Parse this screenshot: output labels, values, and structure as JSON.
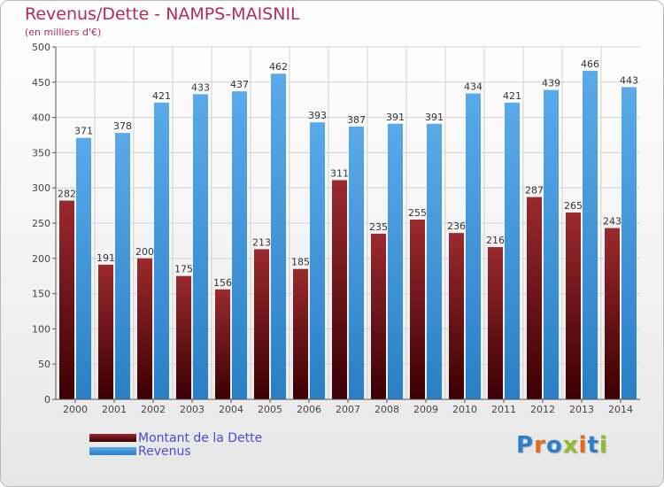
{
  "header": {
    "title": "Revenus/Dette - NAMPS-MAISNIL",
    "subtitle": "(en milliers d'€)"
  },
  "legend": [
    {
      "label": "Montant de la Dette",
      "color": "#7a1518"
    },
    {
      "label": "Revenus",
      "color": "#3d95dc"
    }
  ],
  "logo": {
    "text": "Proxiti",
    "colors": [
      "#2f7fc8",
      "#e8681a",
      "#2f7fc8",
      "#8ebd2a",
      "#e8681a",
      "#2f7fc8",
      "#8ebd2a"
    ]
  },
  "colors": {
    "title": "#b52a5c",
    "debt": "#7a1518",
    "revenue": "#3d95dc",
    "grid": "#d2d2d2"
  },
  "chart_data": {
    "type": "bar",
    "categories": [
      "2000",
      "2001",
      "2002",
      "2003",
      "2004",
      "2005",
      "2006",
      "2007",
      "2008",
      "2009",
      "2010",
      "2011",
      "2012",
      "2013",
      "2014"
    ],
    "series": [
      {
        "name": "Montant de la Dette",
        "values": [
          282,
          191,
          200,
          175,
          156,
          213,
          185,
          311,
          235,
          255,
          236,
          216,
          287,
          265,
          243
        ]
      },
      {
        "name": "Revenus",
        "values": [
          371,
          378,
          421,
          433,
          437,
          462,
          393,
          387,
          391,
          391,
          434,
          421,
          439,
          466,
          443
        ]
      }
    ],
    "title": "Revenus/Dette - NAMPS-MAISNIL",
    "ylabel": "(en milliers d'€)",
    "ylim": [
      0,
      500
    ],
    "yticks": [
      0,
      50,
      100,
      150,
      200,
      250,
      300,
      350,
      400,
      450,
      500
    ],
    "grid": true,
    "legend_position": "bottom-left"
  }
}
